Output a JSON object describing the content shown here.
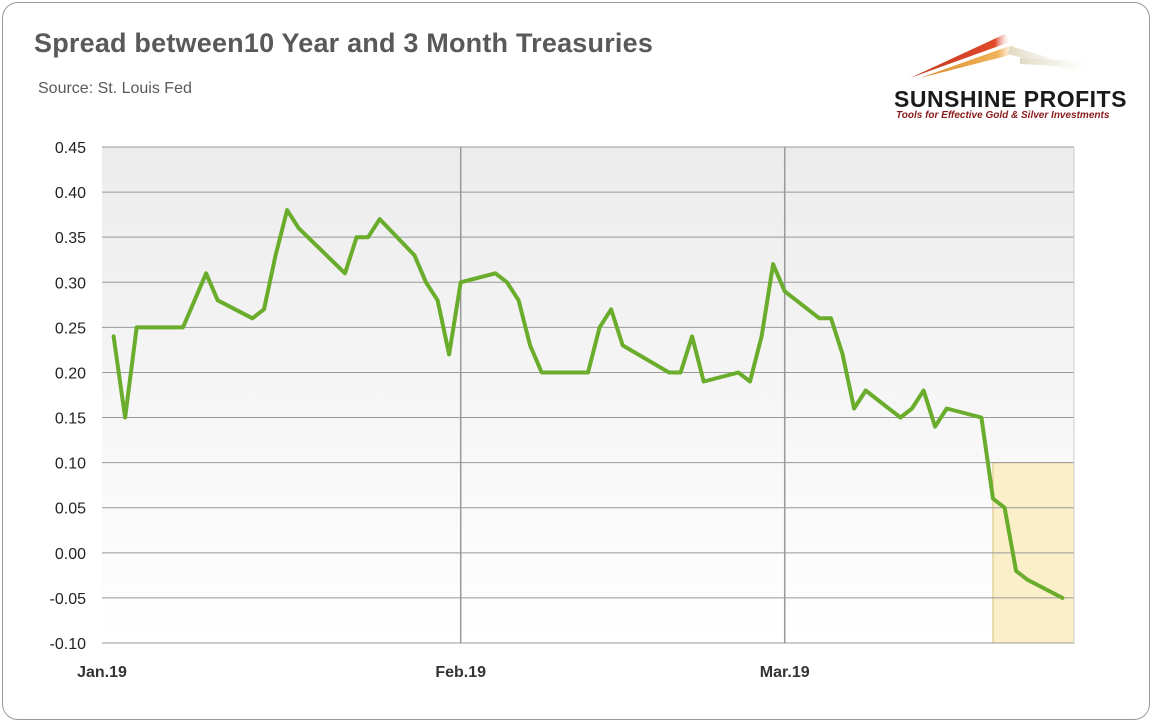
{
  "header": {
    "title": "Spread between10 Year and 3 Month Treasuries",
    "source": "Source: St. Louis Fed"
  },
  "logo": {
    "brand": "SUNSHINE PROFITS",
    "tagline": "Tools for Effective Gold & Silver Investments"
  },
  "colors": {
    "line": "#6aac2b",
    "highlight_fill": "#fbefc9",
    "highlight_border": "#d9c27a",
    "grid": "#999999",
    "plot_top": "#ececec",
    "plot_bottom": "#ffffff"
  },
  "chart_data": {
    "type": "line",
    "title": "Spread between10 Year and 3 Month Treasuries",
    "xlabel": "",
    "ylabel": "",
    "ylim": [
      -0.1,
      0.45
    ],
    "yticks": [
      0.45,
      0.4,
      0.35,
      0.3,
      0.25,
      0.2,
      0.15,
      0.1,
      0.05,
      0.0,
      -0.05,
      -0.1
    ],
    "ytick_labels": [
      "0.45",
      "0.40",
      "0.35",
      "0.30",
      "0.25",
      "0.20",
      "0.15",
      "0.10",
      "0.05",
      "0.00",
      "-0.05",
      "-0.10"
    ],
    "xlim": [
      "2019-01-01",
      "2019-03-26"
    ],
    "xticks": [
      {
        "date": "2019-01-01",
        "label": "Jan.19"
      },
      {
        "date": "2019-02-01",
        "label": "Feb.19"
      },
      {
        "date": "2019-03-01",
        "label": "Mar.19"
      }
    ],
    "grid": true,
    "legend": "none",
    "series": [
      {
        "x": [
          "2019-01-02",
          "2019-01-03",
          "2019-01-04",
          "2019-01-07",
          "2019-01-08",
          "2019-01-09",
          "2019-01-10",
          "2019-01-11",
          "2019-01-14",
          "2019-01-15",
          "2019-01-16",
          "2019-01-17",
          "2019-01-18",
          "2019-01-22",
          "2019-01-23",
          "2019-01-24",
          "2019-01-25",
          "2019-01-28",
          "2019-01-29",
          "2019-01-30",
          "2019-01-31",
          "2019-02-01",
          "2019-02-04",
          "2019-02-05",
          "2019-02-06",
          "2019-02-07",
          "2019-02-08",
          "2019-02-11",
          "2019-02-12",
          "2019-02-13",
          "2019-02-14",
          "2019-02-15",
          "2019-02-19",
          "2019-02-20",
          "2019-02-21",
          "2019-02-22",
          "2019-02-25",
          "2019-02-26",
          "2019-02-27",
          "2019-02-28",
          "2019-03-01",
          "2019-03-04",
          "2019-03-05",
          "2019-03-06",
          "2019-03-07",
          "2019-03-08",
          "2019-03-11",
          "2019-03-12",
          "2019-03-13",
          "2019-03-14",
          "2019-03-15",
          "2019-03-18",
          "2019-03-19",
          "2019-03-20",
          "2019-03-21",
          "2019-03-22",
          "2019-03-25"
        ],
        "values": [
          0.24,
          0.15,
          0.25,
          0.25,
          0.25,
          0.28,
          0.31,
          0.28,
          0.26,
          0.27,
          0.33,
          0.38,
          0.36,
          0.31,
          0.35,
          0.35,
          0.37,
          0.33,
          0.3,
          0.28,
          0.22,
          0.3,
          0.31,
          0.3,
          0.28,
          0.23,
          0.2,
          0.2,
          0.2,
          0.25,
          0.27,
          0.23,
          0.2,
          0.2,
          0.24,
          0.19,
          0.2,
          0.19,
          0.24,
          0.32,
          0.29,
          0.26,
          0.26,
          0.22,
          0.16,
          0.18,
          0.15,
          0.16,
          0.18,
          0.14,
          0.16,
          0.15,
          0.06,
          0.05,
          -0.02,
          -0.03,
          -0.05
        ]
      }
    ],
    "highlight": {
      "x": [
        "2019-03-19",
        "2019-03-26"
      ],
      "y": [
        -0.1,
        0.1
      ]
    }
  }
}
